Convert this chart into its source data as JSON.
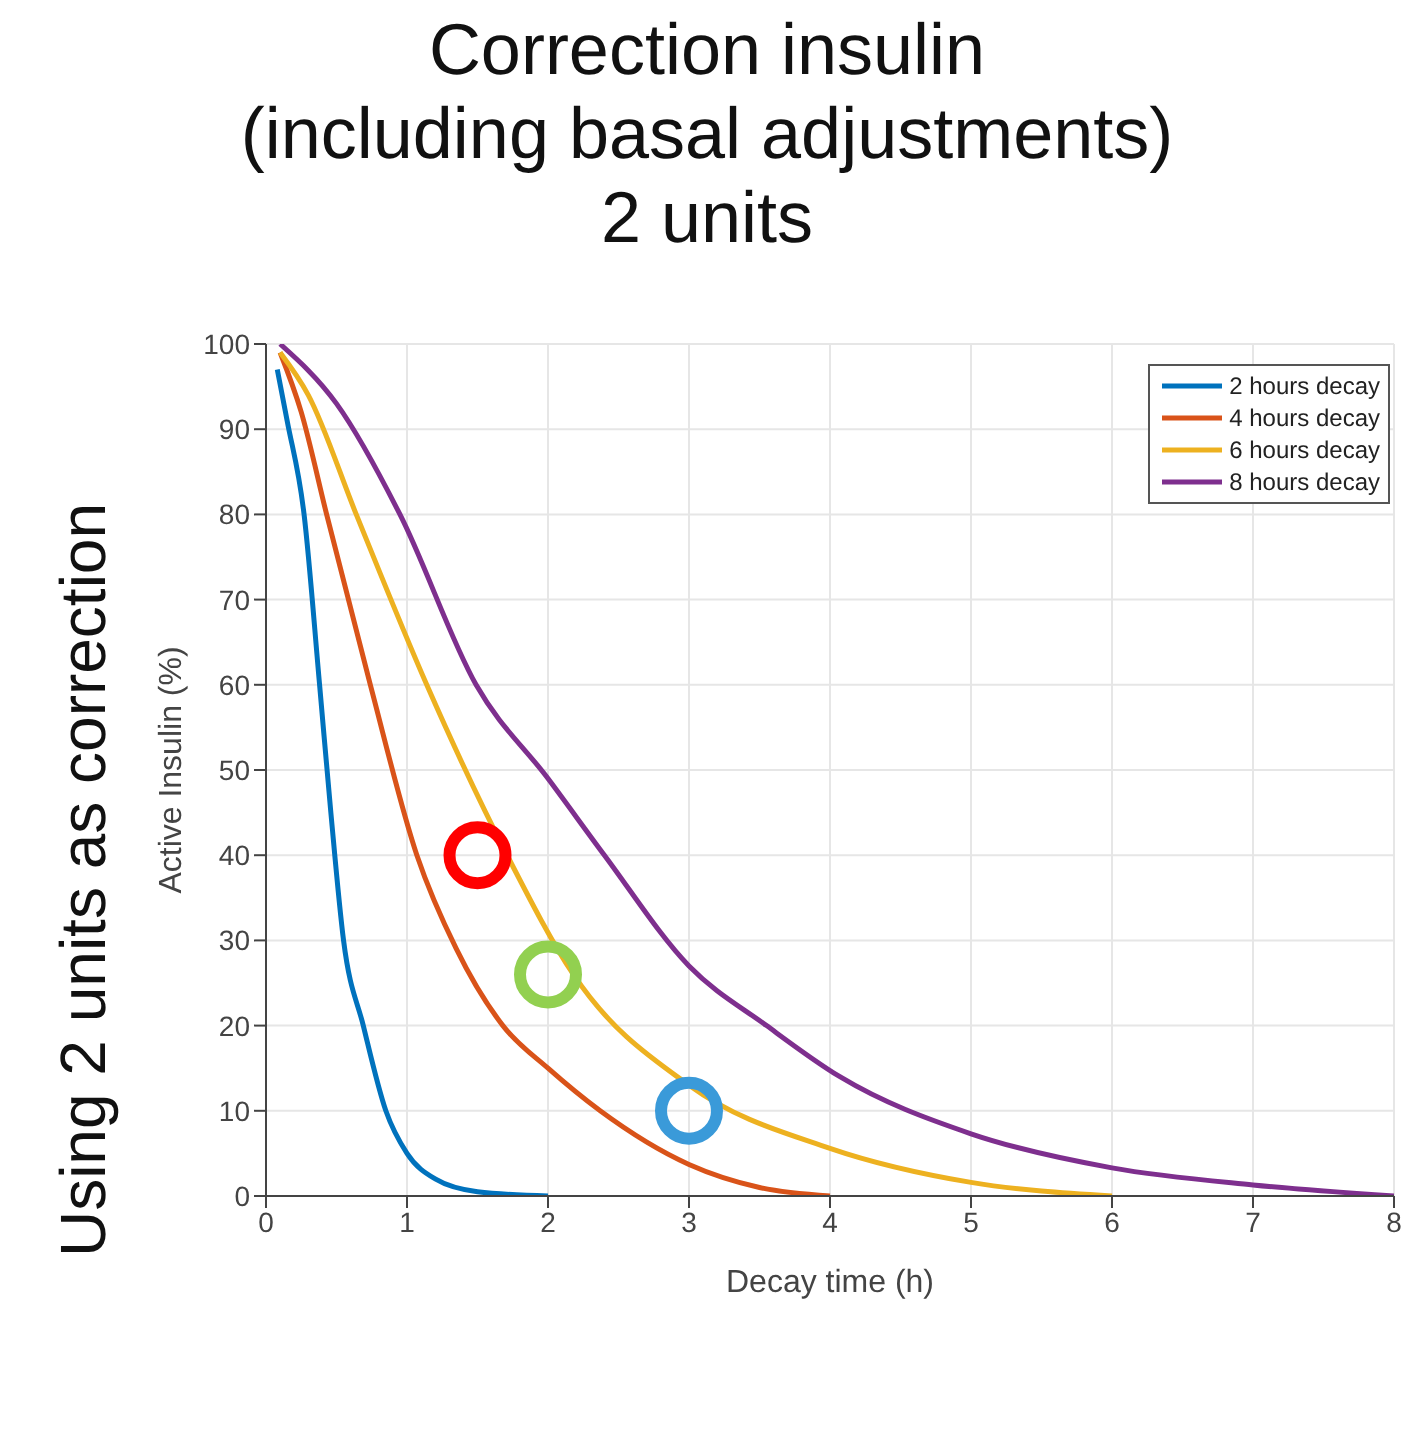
{
  "chart_data": {
    "type": "line",
    "title": "Correction insulin\n(including basal adjustments)\n2 units",
    "xlabel": "Decay time (h)",
    "ylabel": "Active Insulin (%)",
    "annotations": [
      "Using 2 units as correction"
    ],
    "xlim": [
      0,
      8
    ],
    "xticks": [
      0,
      1,
      2,
      3,
      4,
      5,
      6,
      7,
      8
    ],
    "ylim": [
      0,
      100
    ],
    "yticks": [
      0,
      10,
      20,
      30,
      40,
      50,
      60,
      70,
      80,
      90,
      100
    ],
    "grid": true,
    "legend": "top right",
    "marker": "none",
    "line_style": "solid",
    "series": [
      {
        "name": "2 hours decay",
        "color": "#0072bd",
        "x": [
          0.08,
          0.15,
          0.27,
          0.38,
          0.46,
          0.55,
          0.69,
          0.85,
          1.0,
          1.2,
          1.5,
          2
        ],
        "values": [
          97,
          91,
          80,
          60,
          45,
          30,
          20,
          10,
          5,
          2,
          0.5,
          0
        ]
      },
      {
        "name": "4 hours decay",
        "color": "#d95319",
        "x": [
          0.1,
          0.25,
          0.43,
          0.74,
          1.07,
          1.35,
          1.68,
          2,
          2.37,
          3,
          3.5,
          4
        ],
        "values": [
          99,
          92,
          80,
          60,
          40,
          29,
          20,
          15,
          10,
          3.7,
          1,
          0
        ]
      },
      {
        "name": "6 hours decay",
        "color": "#edb120",
        "x": [
          0.1,
          0.3,
          0.64,
          1.14,
          1.71,
          2.18,
          3,
          4,
          5,
          6
        ],
        "values": [
          99,
          94,
          80,
          60,
          40,
          26,
          13,
          5.6,
          1.6,
          0
        ]
      },
      {
        "name": "8 hours decay",
        "color": "#7e2f8e",
        "x": [
          0.1,
          0.5,
          0.95,
          1.49,
          2,
          2.4,
          3,
          3.55,
          4.07,
          5,
          6,
          7,
          8
        ],
        "values": [
          100,
          93,
          80,
          60,
          49,
          40,
          27,
          20,
          14,
          7.3,
          3.3,
          1.3,
          0
        ]
      },
      {
        "type": "scatter",
        "marker": "circle",
        "color": "#ff0000",
        "x": [
          1.5
        ],
        "values": [
          40
        ]
      },
      {
        "type": "scatter",
        "marker": "circle",
        "color": "#92d050",
        "x": [
          2
        ],
        "values": [
          26
        ]
      },
      {
        "type": "scatter",
        "marker": "circle",
        "color": "#3a9ad9",
        "x": [
          3
        ],
        "values": [
          10
        ]
      }
    ]
  }
}
